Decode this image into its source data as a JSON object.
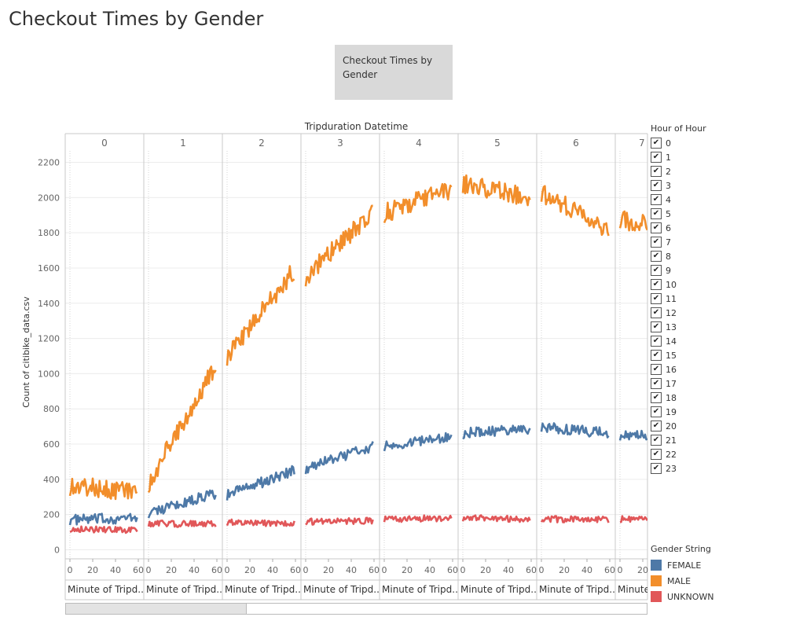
{
  "page": {
    "title": "Checkout Times by Gender"
  },
  "title_box": {
    "text": "Checkout Times by Gender"
  },
  "filter": {
    "title": "Hour of Hour",
    "items": [
      "0",
      "1",
      "2",
      "3",
      "4",
      "5",
      "6",
      "7",
      "8",
      "9",
      "10",
      "11",
      "12",
      "13",
      "14",
      "15",
      "16",
      "17",
      "18",
      "19",
      "20",
      "21",
      "22",
      "23"
    ],
    "checked_mark": "✔"
  },
  "legend": {
    "title": "Gender String",
    "items": [
      {
        "label": "FEMALE",
        "color": "#4e79a7"
      },
      {
        "label": "MALE",
        "color": "#f28e2b"
      },
      {
        "label": "UNKNOWN",
        "color": "#e15759"
      }
    ]
  },
  "chart_data": {
    "type": "line",
    "title": "Tripduration Datetime",
    "ylabel": "Count of citibike_data.csv",
    "xlabel": "Minute of Tripd..",
    "ylim": [
      0,
      2250
    ],
    "yticks": [
      0,
      200,
      400,
      600,
      800,
      1000,
      1200,
      1400,
      1600,
      1800,
      2000,
      2200
    ],
    "xticks": [
      0,
      20,
      40,
      60
    ],
    "panel_headers": [
      "0",
      "1",
      "2",
      "3",
      "4",
      "5",
      "6",
      "7"
    ],
    "grid": "horizontal",
    "legend_position": "right",
    "series": [
      {
        "name": "FEMALE",
        "color": "#4e79a7",
        "panels": [
          [
            170,
            180
          ],
          [
            210,
            320
          ],
          [
            310,
            450
          ],
          [
            460,
            590
          ],
          [
            590,
            640
          ],
          [
            660,
            690
          ],
          [
            700,
            660
          ],
          [
            650,
            650
          ]
        ]
      },
      {
        "name": "MALE",
        "color": "#f28e2b",
        "panels": [
          [
            360,
            335
          ],
          [
            380,
            1050
          ],
          [
            1100,
            1590
          ],
          [
            1550,
            1920
          ],
          [
            1910,
            2050
          ],
          [
            2080,
            2000
          ],
          [
            2030,
            1820
          ],
          [
            1880,
            1790
          ]
        ]
      },
      {
        "name": "UNKNOWN",
        "color": "#e15759",
        "panels": [
          [
            120,
            110
          ],
          [
            150,
            145
          ],
          [
            155,
            150
          ],
          [
            160,
            165
          ],
          [
            175,
            180
          ],
          [
            180,
            175
          ],
          [
            175,
            170
          ],
          [
            175,
            170
          ]
        ]
      }
    ]
  }
}
